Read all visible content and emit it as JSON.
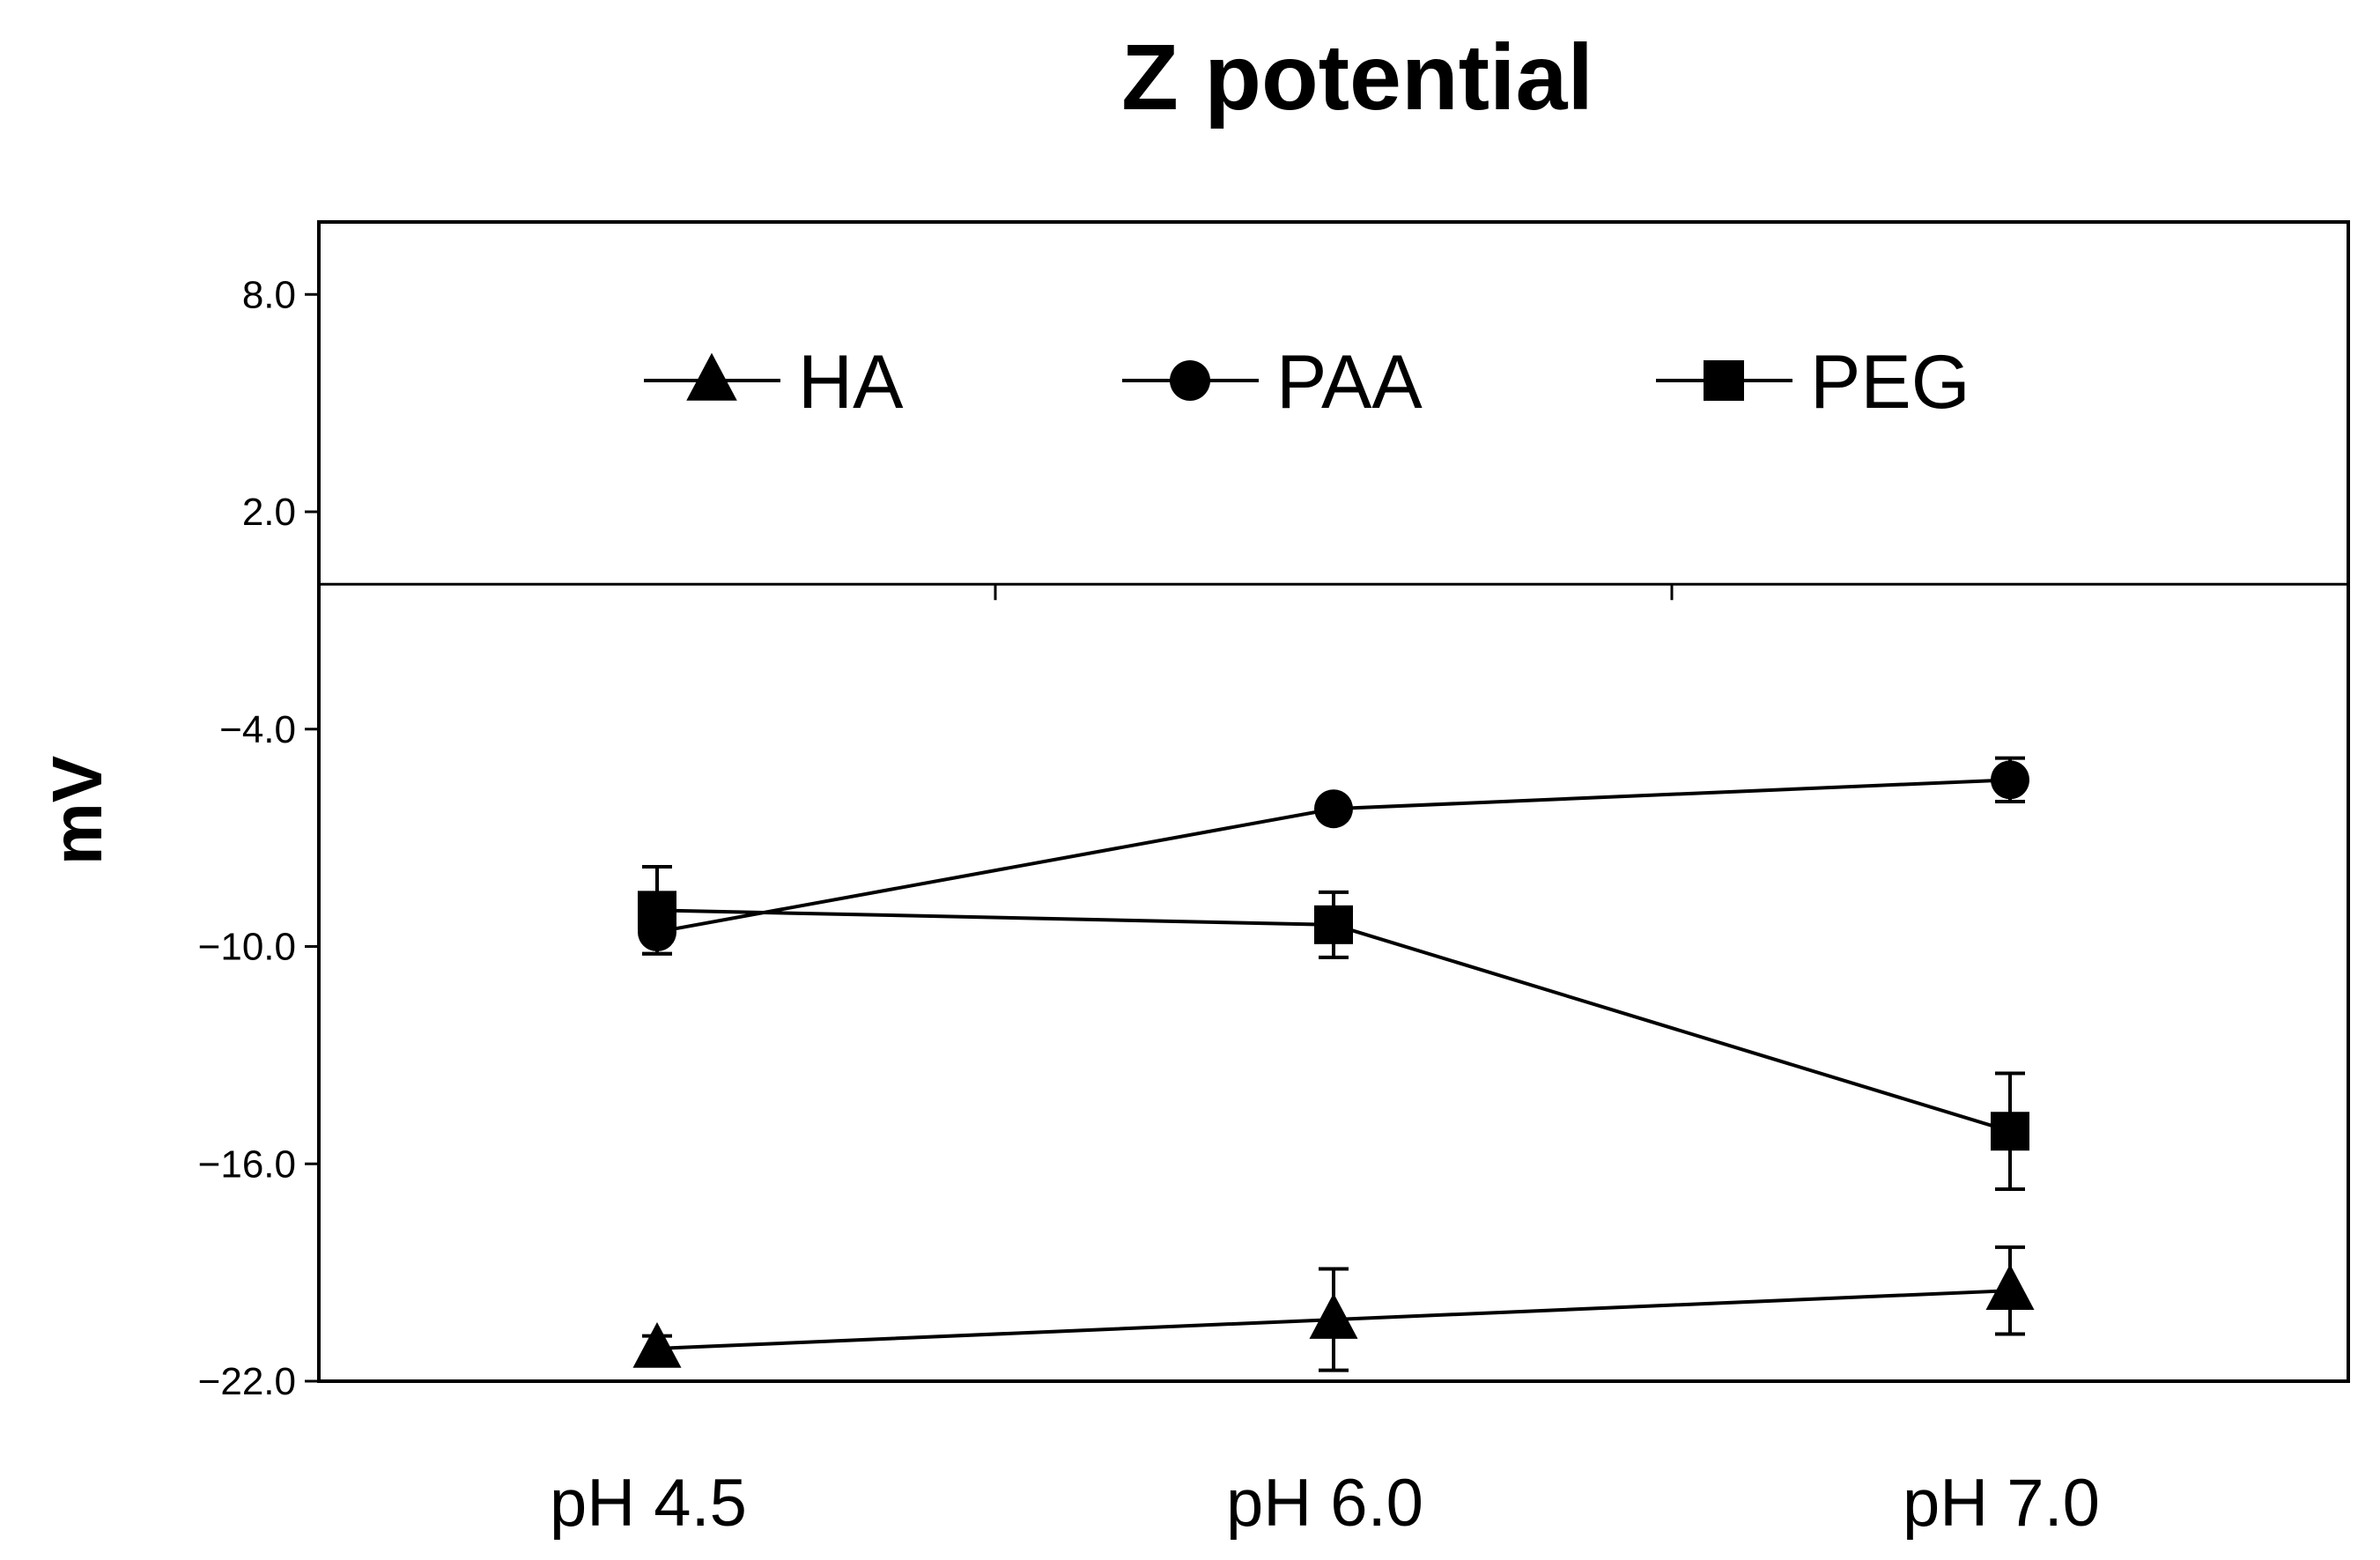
{
  "chart_data": {
    "type": "line",
    "title": "Z potential",
    "xlabel": "",
    "ylabel": "mV",
    "categories": [
      "pH 4.5",
      "pH 6.0",
      "pH 7.0"
    ],
    "ylim": [
      -22.0,
      10.0
    ],
    "yticks": [
      8.0,
      2.0,
      -4.0,
      -10.0,
      -16.0,
      -22.0
    ],
    "ytick_labels": [
      "8.0",
      "2.0",
      "−4.0",
      "−10.0",
      "−16.0",
      "−22.0"
    ],
    "legend_position": "top",
    "zero_line": 0,
    "series": [
      {
        "name": "HA",
        "marker": "triangle",
        "values": [
          -21.1,
          -20.3,
          -19.5
        ],
        "errors": [
          0.35,
          1.4,
          1.2
        ]
      },
      {
        "name": "PAA",
        "marker": "circle",
        "values": [
          -9.6,
          -6.2,
          -5.4
        ],
        "errors": [
          0.6,
          0.3,
          0.6
        ]
      },
      {
        "name": "PEG",
        "marker": "square",
        "values": [
          -9.0,
          -9.4,
          -15.1
        ],
        "errors": [
          1.2,
          0.9,
          1.6
        ]
      }
    ],
    "colors": {
      "ink": "#000000",
      "background": "#ffffff"
    }
  }
}
